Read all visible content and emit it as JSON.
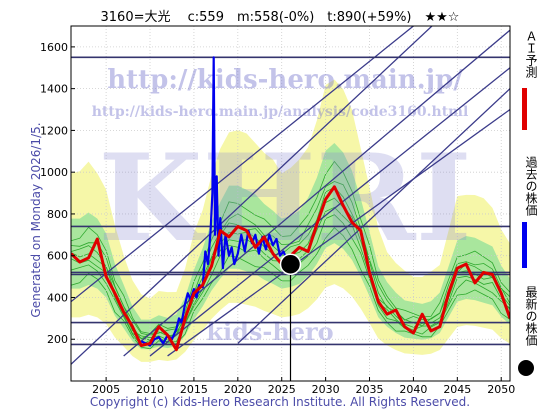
{
  "header": {
    "title": "3160=大光　 c:559　m:558(-0%)　t:890(+59%)　★★☆"
  },
  "side_text": "Generated on Monday 2026/1/5.",
  "footer": "Copyright (c) Kids-Hero Research Institute. All Rights Reserved.",
  "watermarks": {
    "url": "http://kids-hero.main.jp/",
    "analysis_url": "http://kids-hero.main.jp/analysis/code3160.html",
    "logo": "KHRI",
    "bottom": "kids-hero"
  },
  "legend": [
    {
      "label": "ＡＩ予測",
      "color": "#e00000",
      "marker": "line"
    },
    {
      "label": "過去の株価",
      "color": "#0000ee",
      "marker": "line"
    },
    {
      "label": "最新の株価",
      "color": "#000000",
      "marker": "dot"
    }
  ],
  "chart_data": {
    "type": "line",
    "x_ticks": [
      2005,
      2010,
      2015,
      2020,
      2025,
      2030,
      2035,
      2040,
      2045,
      2050
    ],
    "y_ticks": [
      200,
      400,
      600,
      800,
      1000,
      1200,
      1400,
      1600
    ],
    "xlim": [
      2001,
      2051
    ],
    "ylim": [
      0,
      1700
    ],
    "horizontal_lines": [
      175,
      280,
      510,
      520,
      740,
      1550
    ],
    "latest_point": {
      "x": 2026.0,
      "y": 559
    },
    "current_price": 559,
    "target_price": 890,
    "series": [
      {
        "name": "過去の株価",
        "color": "#0000ee",
        "x": [
          2009.0,
          2009.5,
          2010.0,
          2010.5,
          2011.0,
          2011.5,
          2012.0,
          2012.5,
          2013.0,
          2013.3,
          2013.6,
          2014.0,
          2014.3,
          2014.6,
          2015.0,
          2015.3,
          2015.6,
          2016.0,
          2016.3,
          2016.6,
          2016.9,
          2017.1,
          2017.25,
          2017.4,
          2017.6,
          2017.8,
          2018.0,
          2018.3,
          2018.6,
          2019.0,
          2019.3,
          2019.6,
          2020.0,
          2020.4,
          2020.8,
          2021.2,
          2021.6,
          2022.0,
          2022.4,
          2022.8,
          2023.2,
          2023.6,
          2024.0,
          2024.4,
          2024.8,
          2025.2,
          2025.6,
          2026.0
        ],
        "y": [
          190,
          180,
          170,
          200,
          210,
          180,
          220,
          200,
          250,
          300,
          280,
          370,
          420,
          390,
          440,
          400,
          460,
          450,
          620,
          560,
          720,
          900,
          1550,
          700,
          980,
          600,
          780,
          540,
          700,
          600,
          640,
          560,
          610,
          700,
          620,
          720,
          660,
          700,
          610,
          690,
          630,
          700,
          650,
          680,
          600,
          620,
          580,
          559
        ]
      },
      {
        "name": "ＡＩ予測",
        "color": "#e00000",
        "x": [
          2001,
          2002,
          2003,
          2004,
          2005,
          2006,
          2007,
          2008,
          2009,
          2010,
          2011,
          2012,
          2013,
          2014,
          2015,
          2016,
          2017,
          2018,
          2019,
          2020,
          2021,
          2022,
          2023,
          2024,
          2025,
          2026,
          2027,
          2028,
          2029,
          2030,
          2031,
          2032,
          2033,
          2034,
          2035,
          2036,
          2037,
          2038,
          2039,
          2040,
          2041,
          2042,
          2043,
          2044,
          2045,
          2046,
          2047,
          2048,
          2049,
          2050,
          2051
        ],
        "y": [
          610,
          570,
          590,
          680,
          500,
          420,
          330,
          260,
          170,
          180,
          260,
          220,
          150,
          300,
          420,
          460,
          550,
          720,
          690,
          740,
          720,
          640,
          690,
          610,
          560,
          600,
          640,
          620,
          750,
          870,
          930,
          840,
          760,
          720,
          520,
          380,
          320,
          340,
          260,
          230,
          320,
          240,
          260,
          420,
          540,
          560,
          470,
          520,
          510,
          420,
          300
        ]
      }
    ]
  }
}
